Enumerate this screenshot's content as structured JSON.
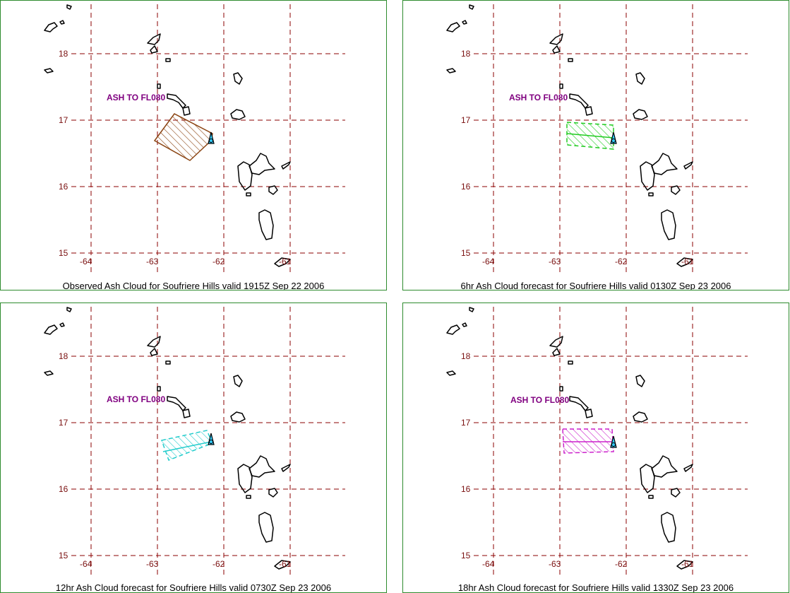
{
  "panels": [
    {
      "caption": "Observed Ash Cloud for Soufriere  Hills valid 1915Z Sep 22 2006",
      "label": "ASH TO FL080",
      "cloud_color": "#8b4513"
    },
    {
      "caption": "6hr Ash Cloud forecast for Soufriere  Hills valid 0130Z Sep 23 2006",
      "label": "ASH TO FL080",
      "cloud_color": "#22cc22"
    },
    {
      "caption": "12hr Ash Cloud forecast for Soufriere  Hills valid 0730Z Sep 23 2006",
      "label": "ASH TO FL080",
      "cloud_color": "#22cccc"
    },
    {
      "caption": "18hr Ash Cloud forecast for Soufriere  Hills valid 1330Z Sep 23 2006",
      "label": "ASH TO FL080",
      "cloud_color": "#cc22cc"
    }
  ],
  "grid": {
    "lat_labels": [
      "18",
      "17",
      "16",
      "15"
    ],
    "lon_labels": [
      "-64",
      "-63",
      "-62",
      "-61"
    ],
    "line_color": "#8b0000"
  },
  "volcano_icon": "volcano-marker-icon"
}
